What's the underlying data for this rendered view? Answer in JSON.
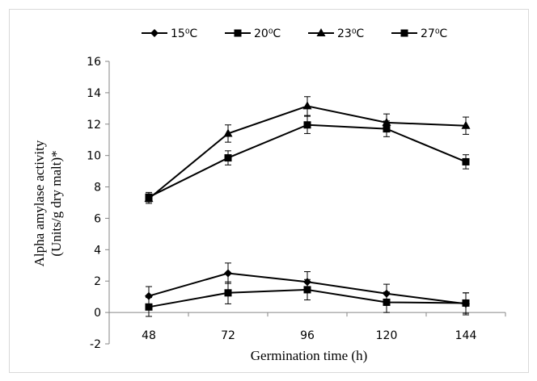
{
  "chart_data": {
    "type": "line",
    "title": "",
    "xlabel": "Germination time (h)",
    "ylabel_line1": "Alpha amylase activity",
    "ylabel_line2": "(Units/g dry malt)*",
    "categories": [
      "48",
      "72",
      "96",
      "120",
      "144"
    ],
    "ylim": [
      -2,
      16
    ],
    "yticks": [
      "16",
      "14",
      "12",
      "10",
      "8",
      "6",
      "4",
      "2",
      "0",
      "-2"
    ],
    "ytick_values": [
      16,
      14,
      12,
      10,
      8,
      6,
      4,
      2,
      0,
      -2
    ],
    "grid": false,
    "legend_position": "top",
    "series": [
      {
        "name": "15⁰C",
        "marker": "diamond",
        "values": [
          1.05,
          2.5,
          1.95,
          1.2,
          0.55
        ],
        "errors": [
          0.6,
          0.65,
          0.65,
          0.6,
          0.7
        ]
      },
      {
        "name": "20⁰C",
        "marker": "square",
        "values": [
          0.35,
          1.25,
          1.45,
          0.65,
          0.6
        ],
        "errors": [
          0.6,
          0.7,
          0.65,
          0.65,
          0.65
        ]
      },
      {
        "name": "23⁰C",
        "marker": "triangle",
        "values": [
          7.25,
          11.4,
          13.15,
          12.1,
          11.9
        ],
        "errors": [
          0.3,
          0.55,
          0.6,
          0.55,
          0.55
        ]
      },
      {
        "name": "27⁰C",
        "marker": "square",
        "values": [
          7.35,
          9.85,
          11.95,
          11.7,
          9.6
        ],
        "errors": [
          0.3,
          0.45,
          0.55,
          0.5,
          0.45
        ]
      }
    ]
  }
}
